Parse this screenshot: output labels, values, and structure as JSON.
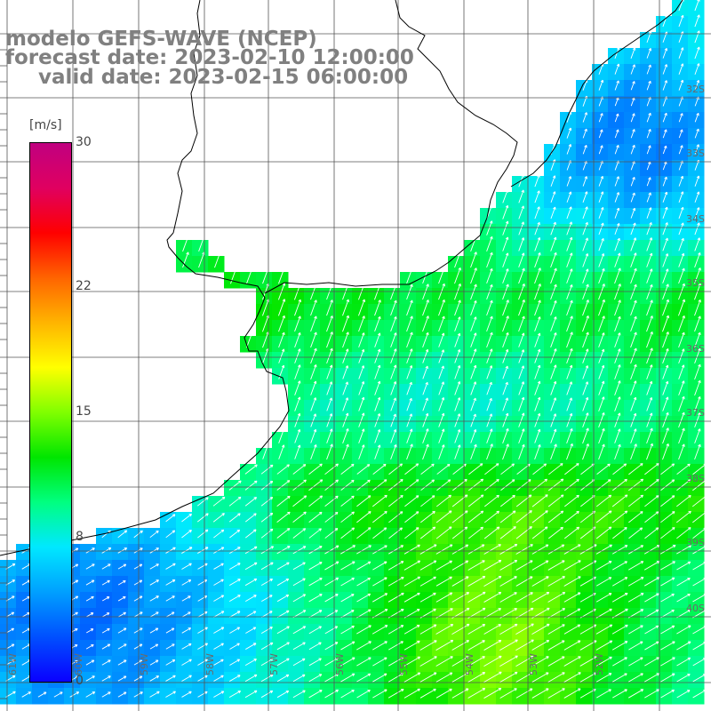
{
  "title": {
    "line1": "modelo GEFS-WAVE (NCEP)",
    "line2": "forecast date: 2023-02-10 12:00:00",
    "line3": "valid date: 2023-02-15 06:00:00"
  },
  "colorbar": {
    "unit": "[m/s]",
    "ticks": [
      "30",
      "22",
      "15",
      "8",
      "0"
    ],
    "tick_values": [
      30,
      22,
      15,
      8,
      0
    ],
    "range": [
      0,
      30
    ],
    "stops": [
      "#0a00ff",
      "#0050ff",
      "#00a0ff",
      "#00e8ff",
      "#00ff80",
      "#00e600",
      "#80ff00",
      "#ffff00",
      "#ffb400",
      "#ff6400",
      "#ff0000",
      "#e00060",
      "#c00080"
    ]
  },
  "latitude_labels": [
    "32S",
    "33S",
    "34S",
    "35S",
    "36S",
    "37S",
    "38S",
    "39S",
    "40S"
  ],
  "latitude_values": [
    -32,
    -33,
    -34,
    -35,
    -36,
    -37,
    -38,
    -39,
    -40
  ],
  "longitude_labels": [
    "61W",
    "60W",
    "59W",
    "58W",
    "57W",
    "56W",
    "55W",
    "54W",
    "53W",
    "52W"
  ],
  "longitude_values": [
    -61,
    -60,
    -59,
    -58,
    -57,
    -56,
    -55,
    -54,
    -53,
    -52
  ],
  "colors": {
    "land": "#ffffff",
    "grid": "#555555",
    "coast": "#000000",
    "arrow": "#ffffff",
    "text": "#808080"
  }
}
